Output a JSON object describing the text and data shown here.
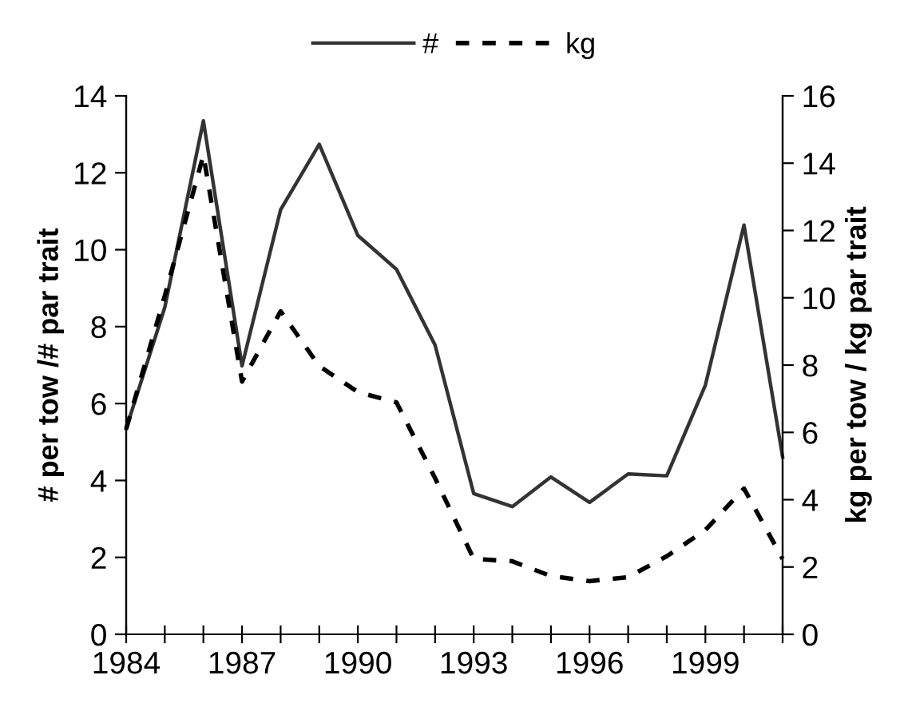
{
  "chart_data": {
    "type": "line",
    "x": [
      1984,
      1985,
      1986,
      1987,
      1988,
      1989,
      1990,
      1991,
      1992,
      1993,
      1994,
      1995,
      1996,
      1997,
      1998,
      1999,
      2000,
      2001
    ],
    "series": [
      {
        "name": "#",
        "color": "#333333",
        "line_style": "solid",
        "values": [
          5.35,
          8.5,
          13.35,
          6.98,
          11.04,
          12.74,
          10.37,
          9.49,
          7.52,
          3.66,
          3.32,
          4.09,
          3.43,
          4.17,
          4.12,
          6.48,
          10.64,
          4.61
        ]
      },
      {
        "name": "kg",
        "color": "#000000",
        "line_style": "dashed",
        "axis": "y2",
        "values": [
          6.1,
          10.06,
          14.24,
          7.51,
          9.6,
          7.97,
          7.2,
          6.89,
          4.64,
          2.24,
          2.17,
          1.73,
          1.58,
          1.7,
          2.32,
          3.1,
          4.33,
          2.24
        ]
      }
    ],
    "ylabel": "# per tow /# par trait",
    "y2label": "kg per tow / kg par trait",
    "xlim": [
      1984,
      2001
    ],
    "xticks": [
      1984,
      {
        "value": 1985,
        "label": null
      },
      {
        "value": 1986,
        "label": null
      },
      1987,
      {
        "value": 1988,
        "label": null
      },
      {
        "value": 1989,
        "label": null
      },
      1990,
      {
        "value": 1991,
        "label": null
      },
      {
        "value": 1992,
        "label": null
      },
      1993,
      {
        "value": 1994,
        "label": null
      },
      {
        "value": 1995,
        "label": null
      },
      1996,
      {
        "value": 1997,
        "label": null
      },
      {
        "value": 1998,
        "label": null
      },
      1999,
      {
        "value": 2000,
        "label": null
      },
      {
        "value": 2001,
        "label": null
      }
    ],
    "ylim": [
      0,
      14
    ],
    "yticks": [
      0,
      2,
      4,
      6,
      8,
      10,
      12,
      14
    ],
    "y2lim": [
      0,
      16
    ],
    "y2ticks": [
      0,
      2,
      4,
      6,
      8,
      10,
      12,
      14,
      16
    ],
    "legend": "top",
    "grid": false,
    "marker": "none"
  }
}
